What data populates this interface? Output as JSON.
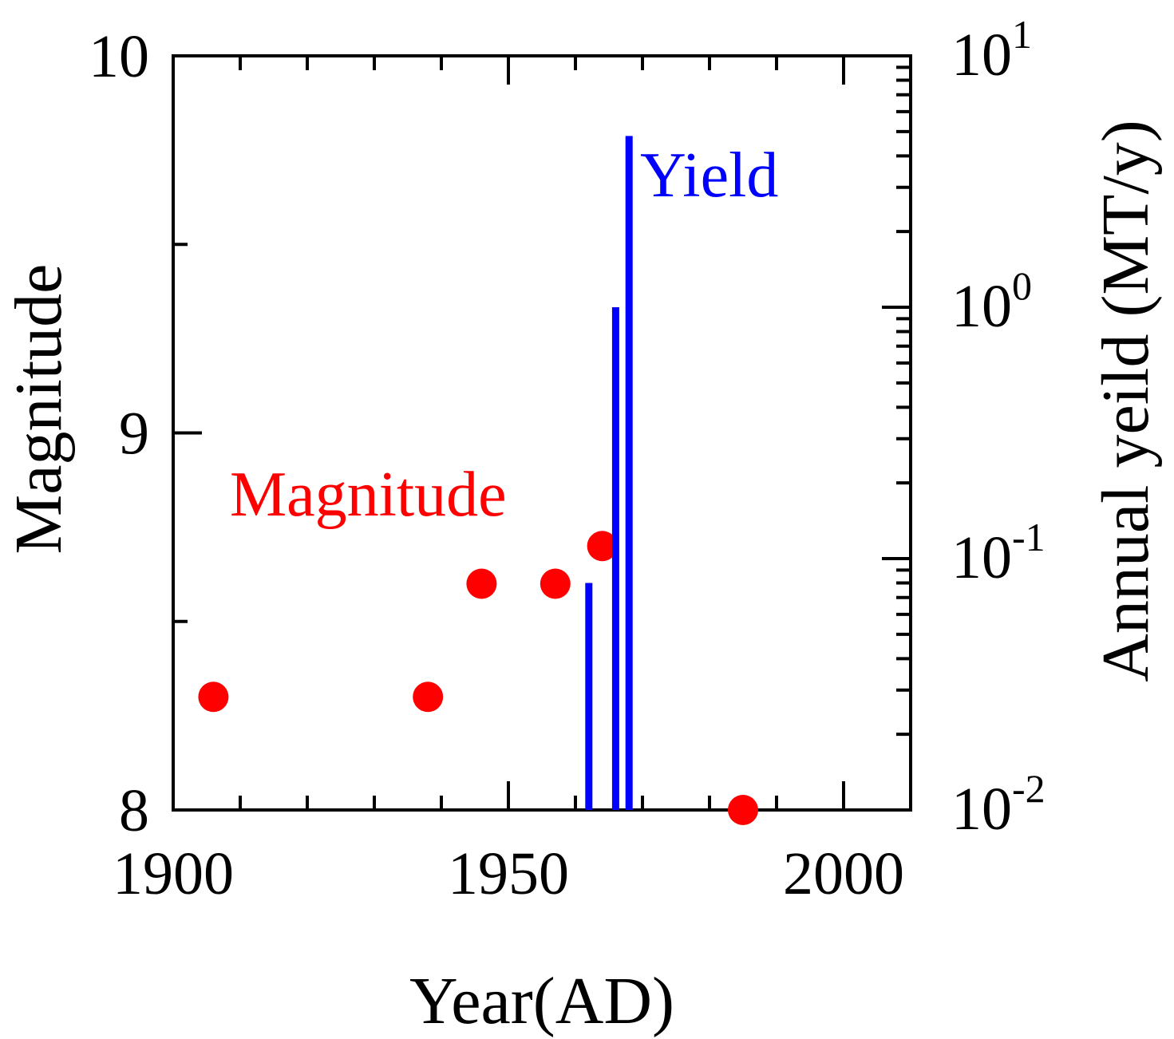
{
  "chart_data": {
    "type": "scatter+bar (dual axis)",
    "xlabel": "Year(AD)",
    "ylabel_left": "Magnitude",
    "ylabel_right": "Annual yeild (MT/y)",
    "xlim": [
      1900,
      2010
    ],
    "x_ticks": [
      1900,
      1950,
      2000
    ],
    "ylim_left": [
      8,
      10
    ],
    "y_ticks_left": [
      8,
      9,
      10
    ],
    "ylim_right": [
      0.01,
      10
    ],
    "y_scale_right": "log",
    "y_ticks_right": [
      {
        "value": 0.01,
        "base": "10",
        "exp": "-2"
      },
      {
        "value": 0.1,
        "base": "10",
        "exp": "-1"
      },
      {
        "value": 1,
        "base": "10",
        "exp": "0"
      },
      {
        "value": 10,
        "base": "10",
        "exp": "1"
      }
    ],
    "series": [
      {
        "name": "Magnitude",
        "kind": "scatter",
        "axis": "left",
        "color": "#ff0000",
        "label": "Magnitude",
        "x": [
          1906,
          1938,
          1946,
          1957,
          1964,
          1985
        ],
        "y": [
          8.3,
          8.3,
          8.6,
          8.6,
          8.7,
          8.0
        ]
      },
      {
        "name": "Yield",
        "kind": "bar",
        "axis": "right",
        "color": "#0000ff",
        "label": "Yield",
        "x": [
          1962,
          1966,
          1968
        ],
        "y": [
          0.08,
          1.0,
          4.8
        ]
      }
    ]
  }
}
